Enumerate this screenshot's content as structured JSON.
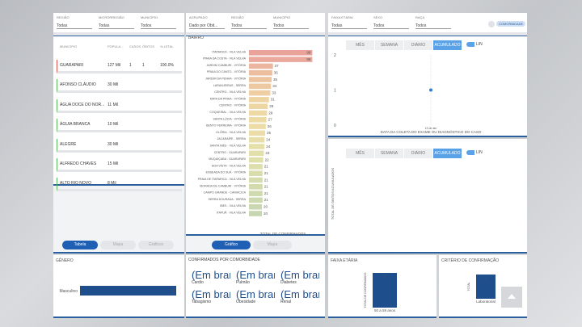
{
  "filters": {
    "left": [
      {
        "label": "REGIÃO",
        "value": "Todas"
      },
      {
        "label": "MICRORREGIÃO",
        "value": "Todas"
      },
      {
        "label": "MUNICÍPIO",
        "value": "Todos"
      }
    ],
    "middle": [
      {
        "label": "AGRUPADO",
        "value": "Dado por Obit..."
      },
      {
        "label": "REGIÃO",
        "value": "Todos"
      },
      {
        "label": "MUNICÍPIO",
        "value": "Todos"
      }
    ],
    "right": [
      {
        "label": "FAIXA ETÁRIA",
        "value": "Todas"
      },
      {
        "label": "SEXO",
        "value": "Todos"
      },
      {
        "label": "RAÇA",
        "value": "Todos"
      }
    ]
  },
  "comorbidity_button": "COMORBIDADE",
  "table": {
    "columns": [
      "MUNICÍPIO",
      "POPULA...",
      "CASOS",
      "ÓBITOS",
      "% LETAL"
    ],
    "rows": [
      [
        "GUARAPARI",
        "127 Mil",
        "1",
        "1",
        "100.0%"
      ],
      [
        "AFONSO CLÁUDIO",
        "30 Mil"
      ],
      [
        "ÁGUA DOCE DO NOR...",
        "11 Mil"
      ],
      [
        "ÁGUIA BRANCA",
        "10 Mil"
      ],
      [
        "ALEGRE",
        "30 Mil"
      ],
      [
        "ALFREDO CHAVES",
        "15 Mil"
      ],
      [
        "ALTO RIO NOVO",
        "8 Mil"
      ]
    ]
  },
  "left_buttons": [
    "Tabela",
    "Mapa",
    "Gráficos"
  ],
  "middle_buttons": [
    "Gráfico",
    "Mapa"
  ],
  "tabs": [
    "MÊS",
    "SEMANA",
    "DIÁRIO",
    "ACUMULADO"
  ],
  "toggle": "LIN",
  "comorbidities": {
    "title": "CONFIRMADOS POR COMORBIDADE",
    "value": "(Em branco)",
    "items": [
      "Cardio",
      "Pulmão",
      "Diabetes",
      "Tabagismo",
      "Obesidade",
      "Renal"
    ]
  },
  "chart_data": [
    {
      "type": "hbar",
      "title": "BAIRRO",
      "xlabel": "TOTAL DE CONFIRMADOS",
      "xlim": [
        0,
        100
      ],
      "categories": [
        "ITAPARICA - VILA VELHA",
        "PRAIA DA COSTA - VILA VELHA",
        "JARDIM CAMBURI - VITÓRIA",
        "PRAIA DO CANTO - VITÓRIA",
        "JARDIM DA PENHA - VITÓRIA",
        "LARANJEIRAS - SERRA",
        "CENTRO - VILA VELHA",
        "MATA DA PRAIA - VITÓRIA",
        "CENTRO - VITÓRIA",
        "COQUEIRAL - VILA VELHA",
        "SANTA LÚCIA - VITÓRIA",
        "BENTO FERREIRA - VITÓRIA",
        "GLÓRIA - VILA VELHA",
        "JACARAÍPE - SERRA",
        "SANTA INÊS - VILA VELHA",
        "CENTRO - GUARAPARI",
        "MUQUIÇABA - GUARAPARI",
        "BOA VISTA - VILA VELHA",
        "ENSEADA DO SUÁ - VITÓRIA",
        "PRAIA DE ITAPARICA - VILA VELHA",
        "MORADA DE CAMBURI - VITÓRIA",
        "CAMPO GRANDE - CARIACICA",
        "SERRA DOURADA - SERRA",
        "IBES - VILA VELHA",
        "ITAPUÃ - VILA VELHA"
      ],
      "values": [
        98,
        98,
        37,
        36,
        35,
        34,
        33,
        31,
        29,
        28,
        27,
        26,
        25,
        24,
        24,
        23,
        22,
        21,
        21,
        21,
        21,
        21,
        21,
        20,
        20
      ],
      "colors": [
        "#e9a39b",
        "#eaa99c",
        "#ebb59f",
        "#ecbd9f",
        "#edc4a0",
        "#edc9a1",
        "#eecea2",
        "#eed3a3",
        "#eed6a4",
        "#eed9a5",
        "#eddba6",
        "#ecdca7",
        "#eadda8",
        "#e8dea9",
        "#e5dfaa",
        "#e2dfab",
        "#dfdfac",
        "#dcdead",
        "#d9ddad",
        "#d6dcae",
        "#d3dbae",
        "#d0daaf",
        "#cdd9af",
        "#cad7b0",
        "#c8d6b0"
      ]
    },
    {
      "type": "line",
      "xlabel": "DATA DA COLETA DO EXAME OU DIAGNÓSTICO DO CASO",
      "x": [
        "13 de abr"
      ],
      "values": [
        1
      ],
      "ylim": [
        0,
        2
      ],
      "yticks": [
        0,
        1,
        2
      ],
      "color": "#2f7fd6"
    },
    {
      "type": "line",
      "ylabel": "TOTAL DE ÓBITOS ACUMULADOS",
      "x": [],
      "values": [],
      "color": "#2f7fd6"
    },
    {
      "type": "hbar",
      "title": "GÊNERO",
      "categories": [
        "Masculino"
      ],
      "values": [
        1
      ],
      "xlim": [
        0,
        1
      ],
      "color": "#1f4e8c"
    },
    {
      "type": "vbar",
      "title": "FAIXA ETÁRIA",
      "ylabel": "TOTAL DE CONFIRMADOS",
      "categories": [
        "50 a 59 anos"
      ],
      "values": [
        1
      ],
      "ylim": [
        0,
        1
      ],
      "color": "#1f4e8c"
    },
    {
      "type": "vbar",
      "title": "CRITÉRIO DE CONFIRMAÇÃO",
      "ylabel": "TOTAL",
      "categories": [
        "Laboratorial"
      ],
      "values": [
        1
      ],
      "ylim": [
        0,
        1
      ],
      "color": "#1f4e8c"
    }
  ]
}
